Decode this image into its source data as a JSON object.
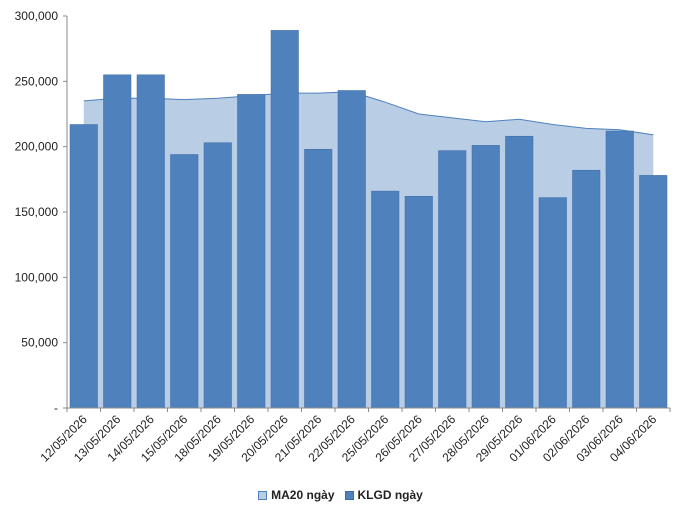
{
  "chart_data": {
    "type": "bar",
    "categories": [
      "12/05/2026",
      "13/05/2026",
      "14/05/2026",
      "15/05/2026",
      "18/05/2026",
      "19/05/2026",
      "20/05/2026",
      "21/05/2026",
      "22/05/2026",
      "25/05/2026",
      "26/05/2026",
      "27/05/2026",
      "28/05/2026",
      "29/05/2026",
      "01/06/2026",
      "02/06/2026",
      "03/06/2026",
      "04/06/2026"
    ],
    "series": [
      {
        "name": "KLGD ngày",
        "type": "bar",
        "values": [
          217000,
          255000,
          255000,
          194000,
          203000,
          240000,
          289000,
          198000,
          243000,
          166000,
          162000,
          197000,
          201000,
          208000,
          161000,
          182000,
          212000,
          178000
        ]
      },
      {
        "name": "MA20 ngày",
        "type": "area",
        "values": [
          235000,
          237000,
          237000,
          236000,
          237000,
          239000,
          241000,
          241000,
          242000,
          234000,
          225000,
          222000,
          219000,
          221000,
          217000,
          214000,
          213000,
          209000
        ]
      }
    ],
    "yticks": [
      "300,000",
      "250,000",
      "200,000",
      "150,000",
      "100,000",
      "50,000",
      "-"
    ],
    "ylim": [
      0,
      300000
    ],
    "grid": false,
    "legend_position": "bottom",
    "colors": {
      "bar": "#4f81bd",
      "area_fill": "#b9cde5",
      "area_line": "#4f81bd"
    }
  },
  "legend": {
    "ma_label": "MA20 ngày",
    "bar_label": "KLGD ngày"
  }
}
